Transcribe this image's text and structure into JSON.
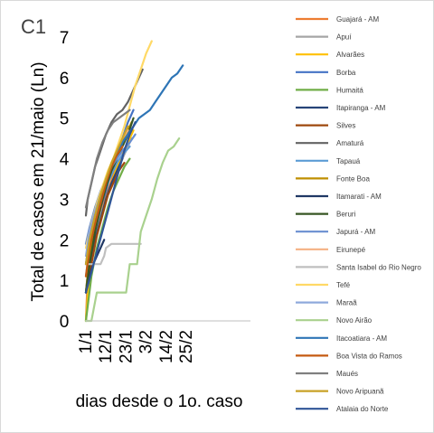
{
  "panel_label": "C1",
  "chart_data": {
    "type": "line",
    "title": "",
    "xlabel": "dias desde o 1o. caso",
    "ylabel": "Total de casos em 21/maio (Ln)",
    "xlim": [
      0,
      90
    ],
    "ylim": [
      0,
      7
    ],
    "y_ticks": [
      0,
      1,
      2,
      3,
      4,
      5,
      6,
      7
    ],
    "x_ticks": [
      {
        "value": 0,
        "label": "1/1"
      },
      {
        "value": 11,
        "label": "12/1"
      },
      {
        "value": 22,
        "label": "23/1"
      },
      {
        "value": 33,
        "label": "3/2"
      },
      {
        "value": 44,
        "label": "14/2"
      },
      {
        "value": 55,
        "label": "25/2"
      }
    ],
    "grid": false,
    "legend_position": "right",
    "series": [
      {
        "name": "Guajará - AM",
        "color": "#ED7D31",
        "points": [
          [
            0,
            0
          ],
          [
            1,
            1.1
          ],
          [
            3,
            1.8
          ],
          [
            6,
            2.3
          ],
          [
            9,
            2.8
          ],
          [
            12,
            3.2
          ],
          [
            15,
            3.6
          ],
          [
            18,
            3.9
          ],
          [
            21,
            4.2
          ],
          [
            24,
            4.4
          ]
        ]
      },
      {
        "name": "Apuí",
        "color": "#A5A5A5",
        "points": [
          [
            0,
            0
          ],
          [
            2,
            1.4
          ],
          [
            5,
            2.1
          ],
          [
            8,
            2.6
          ],
          [
            11,
            3.0
          ],
          [
            14,
            3.4
          ],
          [
            17,
            3.7
          ],
          [
            20,
            4.0
          ],
          [
            23,
            4.3
          ],
          [
            25,
            4.5
          ]
        ]
      },
      {
        "name": "Alvarães",
        "color": "#FFC000",
        "points": [
          [
            0,
            0
          ],
          [
            2,
            1.2
          ],
          [
            5,
            1.9
          ],
          [
            8,
            2.5
          ],
          [
            11,
            3.0
          ],
          [
            14,
            3.4
          ],
          [
            17,
            3.8
          ],
          [
            20,
            4.1
          ],
          [
            23,
            4.4
          ],
          [
            26,
            4.7
          ]
        ]
      },
      {
        "name": "Borba",
        "color": "#4472C4",
        "points": [
          [
            0,
            0.7
          ],
          [
            2,
            1.6
          ],
          [
            5,
            2.2
          ],
          [
            8,
            2.8
          ],
          [
            11,
            3.2
          ],
          [
            14,
            3.7
          ],
          [
            17,
            4.0
          ],
          [
            20,
            4.5
          ],
          [
            23,
            4.9
          ],
          [
            26,
            5.2
          ]
        ]
      },
      {
        "name": "Humaitá",
        "color": "#70AD47",
        "points": [
          [
            0,
            0
          ],
          [
            3,
            1.1
          ],
          [
            6,
            1.8
          ],
          [
            9,
            2.3
          ],
          [
            12,
            2.8
          ],
          [
            15,
            3.2
          ],
          [
            18,
            3.5
          ],
          [
            21,
            3.8
          ],
          [
            24,
            4.0
          ]
        ]
      },
      {
        "name": "Itapiranga - AM",
        "color": "#264478",
        "points": [
          [
            0,
            0.7
          ],
          [
            2,
            1.4
          ],
          [
            5,
            2.0
          ],
          [
            8,
            2.5
          ],
          [
            11,
            3.0
          ],
          [
            14,
            3.4
          ],
          [
            17,
            3.7
          ],
          [
            20,
            4.0
          ]
        ]
      },
      {
        "name": "Silves",
        "color": "#9E480E",
        "points": [
          [
            0,
            0.7
          ],
          [
            3,
            1.4
          ],
          [
            6,
            2.1
          ],
          [
            9,
            2.6
          ],
          [
            12,
            3.1
          ],
          [
            15,
            3.4
          ],
          [
            18,
            3.7
          ],
          [
            21,
            3.9
          ]
        ]
      },
      {
        "name": "Amaturá",
        "color": "#636363",
        "points": [
          [
            0,
            2.6
          ],
          [
            1,
            3.0
          ],
          [
            3,
            3.4
          ],
          [
            5,
            3.8
          ],
          [
            8,
            4.2
          ],
          [
            11,
            4.6
          ],
          [
            14,
            4.9
          ],
          [
            17,
            5.1
          ],
          [
            20,
            5.2
          ],
          [
            23,
            5.4
          ],
          [
            26,
            5.7
          ],
          [
            29,
            6.0
          ],
          [
            31,
            6.2
          ]
        ]
      },
      {
        "name": "Tapauá",
        "color": "#5B9BD5",
        "points": [
          [
            0,
            1.1
          ],
          [
            2,
            1.8
          ],
          [
            5,
            2.4
          ],
          [
            8,
            2.9
          ],
          [
            11,
            3.3
          ],
          [
            14,
            3.6
          ],
          [
            17,
            3.9
          ],
          [
            20,
            4.1
          ],
          [
            24,
            4.3
          ]
        ]
      },
      {
        "name": "Fonte Boa",
        "color": "#BF8F00",
        "points": [
          [
            0,
            0.7
          ],
          [
            2,
            1.6
          ],
          [
            5,
            2.3
          ],
          [
            8,
            2.9
          ],
          [
            11,
            3.4
          ],
          [
            14,
            3.8
          ],
          [
            17,
            4.1
          ],
          [
            20,
            4.4
          ],
          [
            23,
            4.7
          ],
          [
            25,
            4.9
          ]
        ]
      },
      {
        "name": "Itamarati - AM",
        "color": "#203864",
        "points": [
          [
            0,
            0.7
          ],
          [
            2,
            1.1
          ],
          [
            4,
            1.4
          ],
          [
            6,
            1.6
          ],
          [
            8,
            1.8
          ],
          [
            10,
            2.0
          ]
        ]
      },
      {
        "name": "Beruri",
        "color": "#375623",
        "points": [
          [
            0,
            0.7
          ],
          [
            2,
            1.4
          ],
          [
            5,
            2.2
          ],
          [
            8,
            2.8
          ],
          [
            11,
            3.3
          ],
          [
            14,
            3.7
          ],
          [
            17,
            4.0
          ],
          [
            20,
            4.3
          ],
          [
            23,
            4.6
          ],
          [
            26,
            5.0
          ]
        ]
      },
      {
        "name": "Japurá - AM",
        "color": "#698ED0",
        "points": [
          [
            0,
            1.9
          ],
          [
            2,
            2.3
          ],
          [
            5,
            2.8
          ],
          [
            8,
            3.2
          ],
          [
            11,
            3.5
          ],
          [
            14,
            3.8
          ],
          [
            17,
            4.0
          ],
          [
            20,
            4.2
          ],
          [
            24,
            4.4
          ],
          [
            27,
            4.6
          ]
        ]
      },
      {
        "name": "Eirunepé",
        "color": "#F4B183",
        "points": [
          [
            0,
            1.4
          ],
          [
            2,
            2.0
          ],
          [
            5,
            2.6
          ],
          [
            8,
            3.1
          ],
          [
            11,
            3.5
          ],
          [
            14,
            3.9
          ],
          [
            17,
            4.2
          ],
          [
            20,
            4.5
          ],
          [
            23,
            4.7
          ]
        ]
      },
      {
        "name": "Santa Isabel do Rio Negro",
        "color": "#BFBFBF",
        "points": [
          [
            0,
            1.4
          ],
          [
            3,
            1.4
          ],
          [
            8,
            1.4
          ],
          [
            10,
            1.6
          ],
          [
            11,
            1.8
          ],
          [
            14,
            1.9
          ],
          [
            18,
            1.9
          ],
          [
            24,
            1.9
          ],
          [
            28,
            1.9
          ],
          [
            30,
            1.9
          ]
        ]
      },
      {
        "name": "Tefé",
        "color": "#FFD966",
        "points": [
          [
            0,
            1.8
          ],
          [
            3,
            2.4
          ],
          [
            6,
            2.9
          ],
          [
            9,
            3.3
          ],
          [
            12,
            3.7
          ],
          [
            15,
            4.0
          ],
          [
            18,
            4.4
          ],
          [
            21,
            4.8
          ],
          [
            24,
            5.3
          ],
          [
            27,
            5.8
          ],
          [
            30,
            6.2
          ],
          [
            33,
            6.6
          ],
          [
            36,
            6.9
          ]
        ]
      },
      {
        "name": "Maraã",
        "color": "#8FAADC",
        "points": [
          [
            0,
            1.6
          ],
          [
            2,
            2.2
          ],
          [
            5,
            2.7
          ],
          [
            8,
            3.1
          ],
          [
            11,
            3.5
          ],
          [
            14,
            3.8
          ],
          [
            17,
            4.1
          ],
          [
            20,
            4.4
          ]
        ]
      },
      {
        "name": "Novo Airão",
        "color": "#A9D18E",
        "points": [
          [
            0,
            0
          ],
          [
            3,
            0
          ],
          [
            6,
            0.7
          ],
          [
            10,
            0.7
          ],
          [
            16,
            0.7
          ],
          [
            22,
            0.7
          ],
          [
            24,
            1.4
          ],
          [
            28,
            1.4
          ],
          [
            30,
            2.2
          ],
          [
            33,
            2.6
          ],
          [
            36,
            3.0
          ],
          [
            39,
            3.5
          ],
          [
            42,
            3.9
          ],
          [
            45,
            4.2
          ],
          [
            48,
            4.3
          ],
          [
            51,
            4.5
          ]
        ]
      },
      {
        "name": "Itacoatiara - AM",
        "color": "#2E75B6",
        "points": [
          [
            0,
            1.4
          ],
          [
            2,
            2.0
          ],
          [
            5,
            2.6
          ],
          [
            8,
            3.0
          ],
          [
            11,
            3.4
          ],
          [
            14,
            3.8
          ],
          [
            17,
            4.1
          ],
          [
            20,
            4.4
          ],
          [
            23,
            4.6
          ],
          [
            26,
            4.8
          ],
          [
            29,
            5.0
          ],
          [
            32,
            5.1
          ],
          [
            35,
            5.2
          ],
          [
            38,
            5.4
          ],
          [
            41,
            5.6
          ],
          [
            44,
            5.8
          ],
          [
            47,
            6.0
          ],
          [
            50,
            6.1
          ],
          [
            53,
            6.3
          ]
        ]
      },
      {
        "name": "Boa Vista do Ramos",
        "color": "#C55A11",
        "points": [
          [
            0,
            1.1
          ],
          [
            2,
            1.8
          ],
          [
            5,
            2.4
          ],
          [
            8,
            2.9
          ],
          [
            11,
            3.4
          ],
          [
            14,
            3.8
          ],
          [
            17,
            4.1
          ],
          [
            20,
            4.3
          ]
        ]
      },
      {
        "name": "Maués",
        "color": "#7F7F7F",
        "points": [
          [
            0,
            2.8
          ],
          [
            2,
            3.2
          ],
          [
            4,
            3.6
          ],
          [
            6,
            4.0
          ],
          [
            9,
            4.4
          ],
          [
            12,
            4.7
          ],
          [
            15,
            4.9
          ],
          [
            18,
            5.0
          ],
          [
            21,
            5.1
          ],
          [
            24,
            5.2
          ]
        ]
      },
      {
        "name": "Novo Aripuanã",
        "color": "#C9A227",
        "points": [
          [
            0,
            1.4
          ],
          [
            2,
            2.0
          ],
          [
            5,
            2.6
          ],
          [
            8,
            3.1
          ],
          [
            11,
            3.5
          ],
          [
            14,
            3.9
          ],
          [
            17,
            4.2
          ],
          [
            20,
            4.5
          ],
          [
            23,
            4.8
          ]
        ]
      },
      {
        "name": "Atalaia do Norte",
        "color": "#2F5597",
        "points": [
          [
            0,
            0.7
          ],
          [
            3,
            1.2
          ],
          [
            6,
            1.7
          ],
          [
            9,
            2.2
          ],
          [
            12,
            2.7
          ],
          [
            15,
            3.2
          ],
          [
            18,
            3.7
          ],
          [
            21,
            4.2
          ],
          [
            24,
            4.6
          ],
          [
            27,
            4.9
          ]
        ]
      }
    ]
  }
}
